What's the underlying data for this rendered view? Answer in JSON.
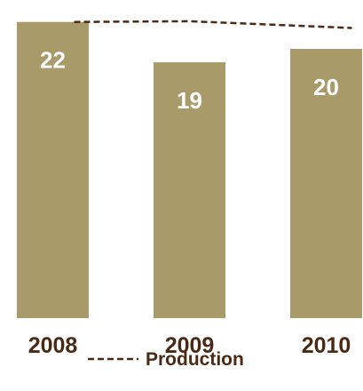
{
  "chart_data": {
    "type": "bar",
    "categories": [
      "2008",
      "2009",
      "2010"
    ],
    "series": [
      {
        "name": "",
        "type": "bar",
        "values": [
          22,
          19,
          20
        ],
        "color": "#a99a6a",
        "data_labels": [
          "22",
          "19",
          "20"
        ]
      },
      {
        "name": "Production",
        "type": "line",
        "style": "dashed",
        "color": "#4a2a14",
        "values": [
          22.0,
          22.05,
          21.55
        ]
      }
    ],
    "ylim": [
      0,
      23
    ],
    "grid": false,
    "legend": {
      "position": "bottom",
      "entries": [
        "Production"
      ]
    },
    "colors": {
      "bar": "#a99a6a",
      "line": "#4a2a14",
      "axis_text": "#4a2a14",
      "data_label": "#ffffff"
    }
  }
}
